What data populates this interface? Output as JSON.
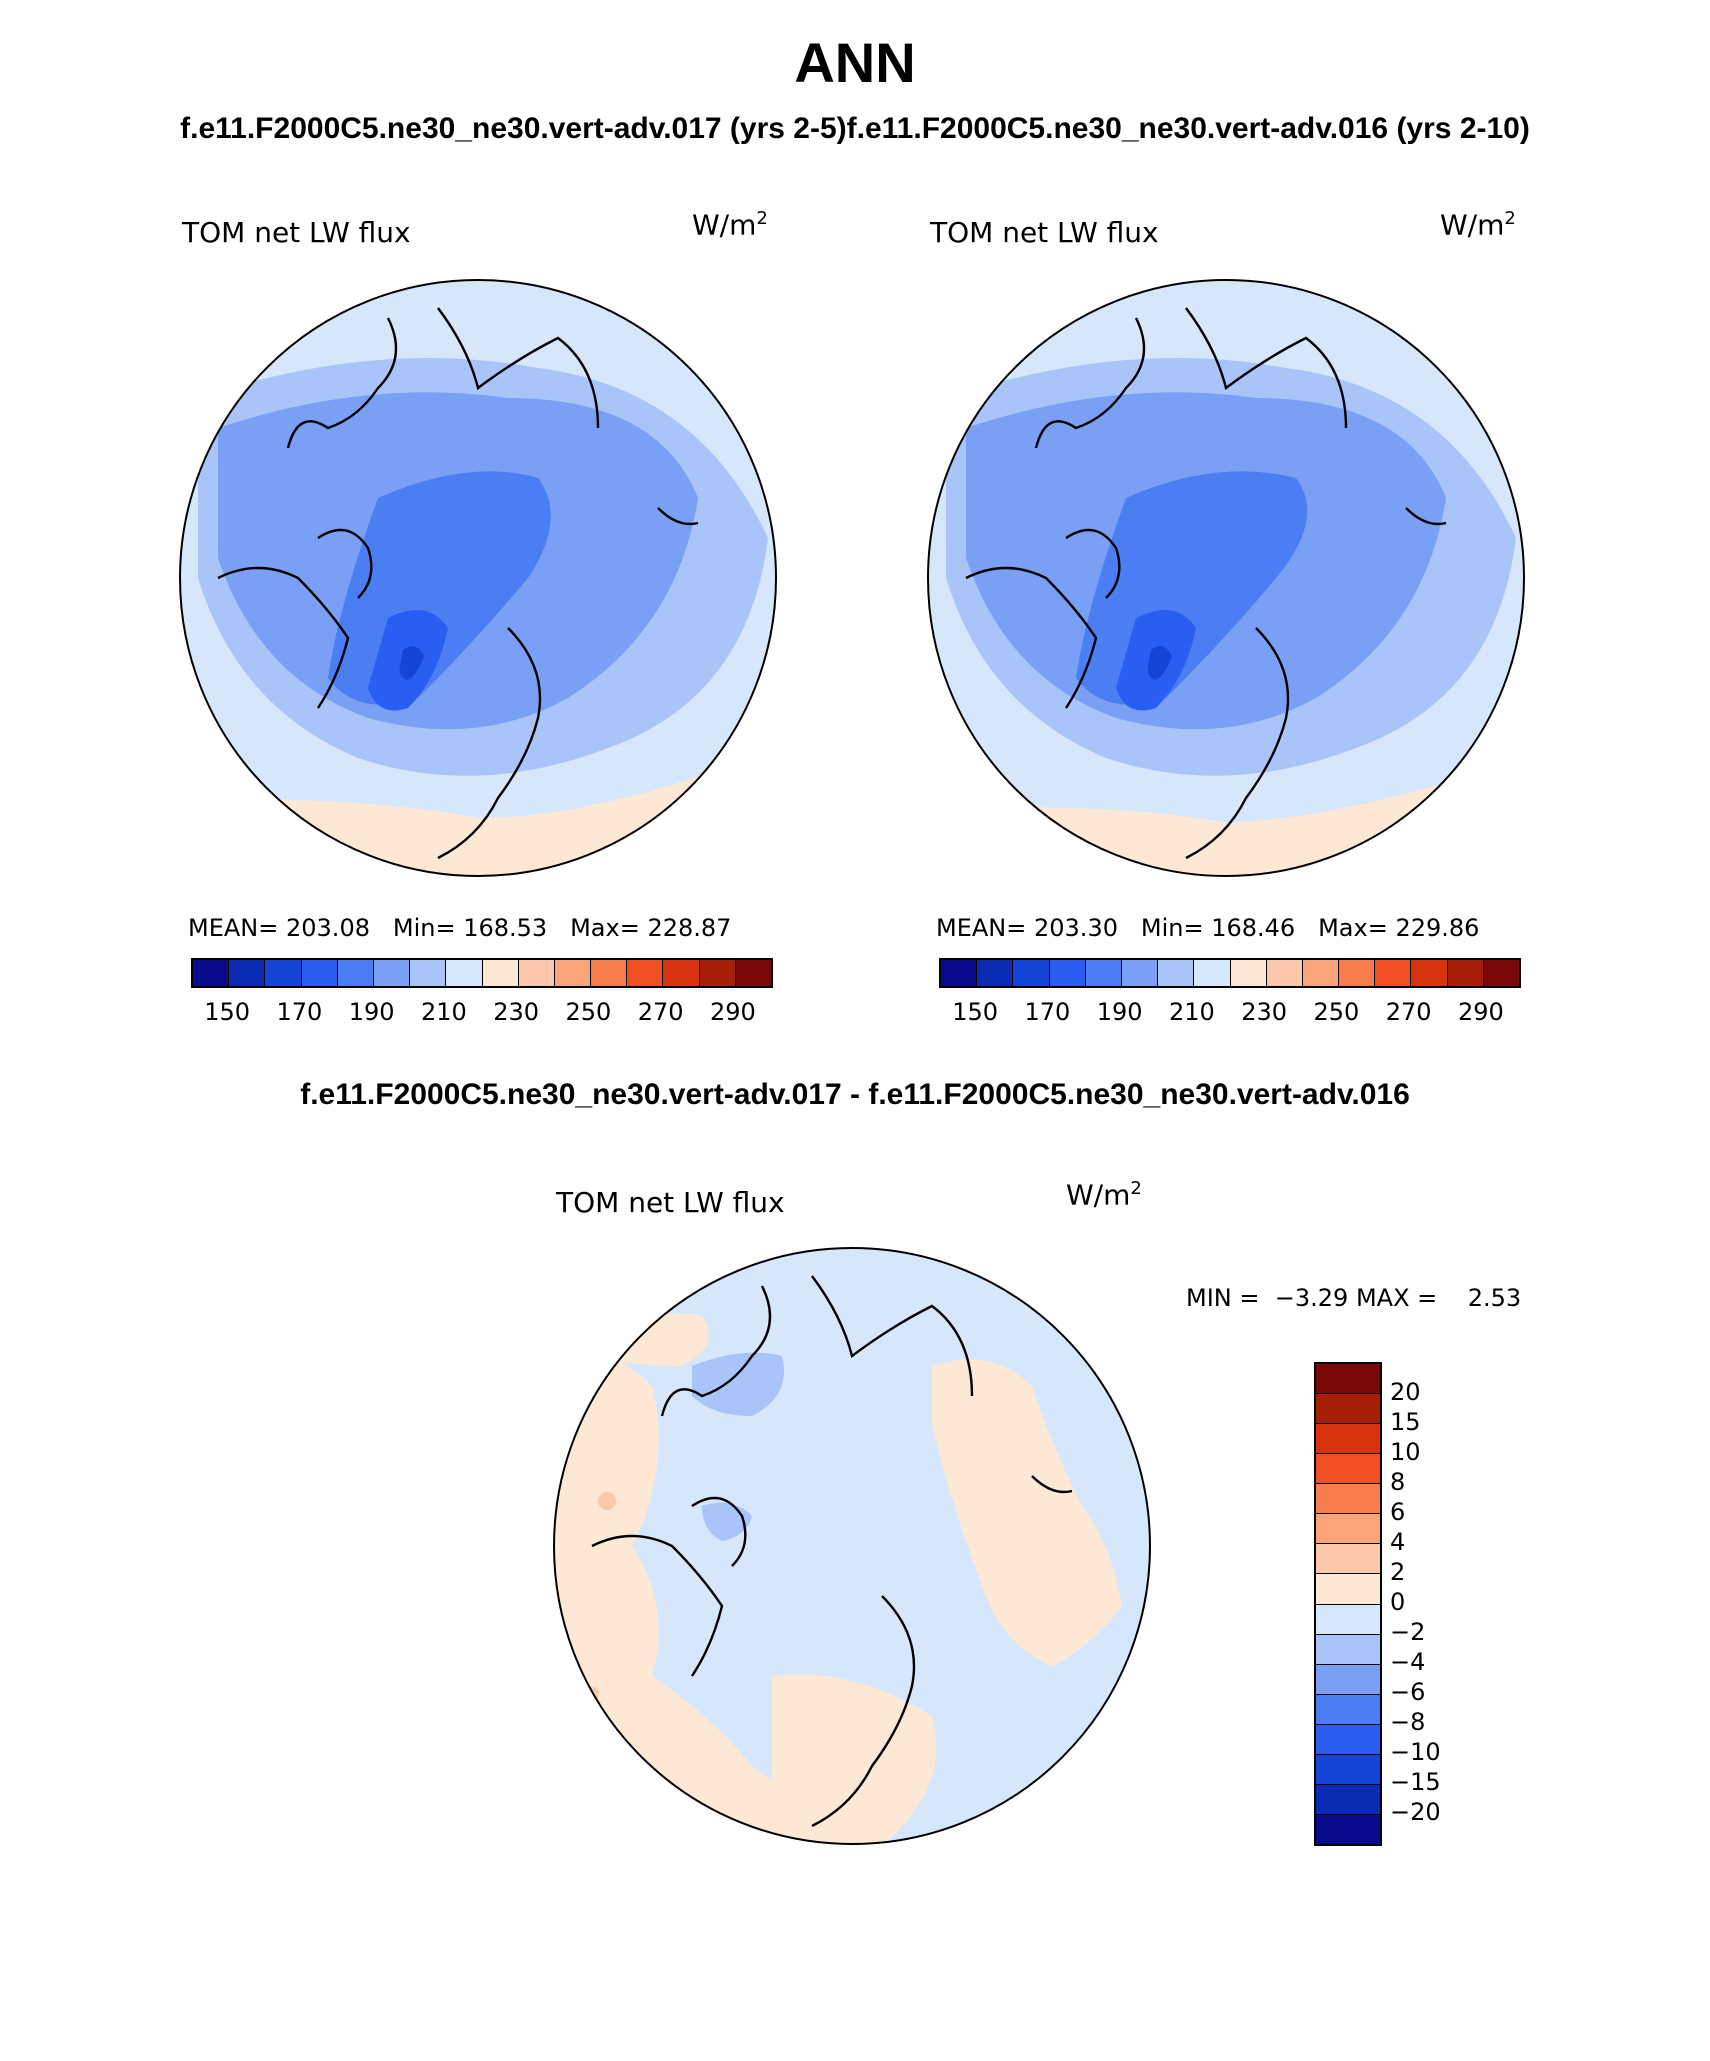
{
  "header": {
    "title": "ANN",
    "subtitle": "f.e11.F2000C5.ne30_ne30.vert-adv.017 (yrs 2-5)f.e11.F2000C5.ne30_ne30.vert-adv.016 (yrs 2-10)",
    "diff_title": "f.e11.F2000C5.ne30_ne30.vert-adv.017 - f.e11.F2000C5.ne30_ne30.vert-adv.016"
  },
  "chart_data": [
    {
      "type": "heatmap",
      "projection": "polar stereographic (north pole)",
      "title": "TOM net LW flux",
      "units": "W/m",
      "units_exp": "2",
      "stats": {
        "mean_label": "MEAN=",
        "mean": "203.08",
        "min_label": "Min=",
        "min": "168.53",
        "max_label": "Max=",
        "max": "228.87"
      },
      "levels": [
        150,
        160,
        170,
        180,
        190,
        200,
        210,
        220,
        230,
        240,
        250,
        260,
        270,
        280,
        290
      ],
      "colorbar_labels": [
        "150",
        "170",
        "190",
        "210",
        "230",
        "250",
        "270",
        "290"
      ],
      "colors": [
        "#0a0a8c",
        "#0c2bb5",
        "#1445d6",
        "#2a5ef0",
        "#4a7ef2",
        "#7aa0f5",
        "#a8c4f8",
        "#d6e6fb",
        "#fde8d6",
        "#fcc8a9",
        "#fba47a",
        "#f77b4b",
        "#f04f23",
        "#d8320f",
        "#a81d08",
        "#7a0808"
      ]
    },
    {
      "type": "heatmap",
      "projection": "polar stereographic (north pole)",
      "title": "TOM net LW flux",
      "units": "W/m",
      "units_exp": "2",
      "stats": {
        "mean_label": "MEAN=",
        "mean": "203.30",
        "min_label": "Min=",
        "min": "168.46",
        "max_label": "Max=",
        "max": "229.86"
      },
      "levels": [
        150,
        160,
        170,
        180,
        190,
        200,
        210,
        220,
        230,
        240,
        250,
        260,
        270,
        280,
        290
      ],
      "colorbar_labels": [
        "150",
        "170",
        "190",
        "210",
        "230",
        "250",
        "270",
        "290"
      ],
      "colors": [
        "#0a0a8c",
        "#0c2bb5",
        "#1445d6",
        "#2a5ef0",
        "#4a7ef2",
        "#7aa0f5",
        "#a8c4f8",
        "#d6e6fb",
        "#fde8d6",
        "#fcc8a9",
        "#fba47a",
        "#f77b4b",
        "#f04f23",
        "#d8320f",
        "#a81d08",
        "#7a0808"
      ]
    },
    {
      "type": "heatmap",
      "projection": "polar stereographic (north pole)",
      "title": "TOM net LW flux",
      "units": "W/m",
      "units_exp": "2",
      "stats": {
        "min_label": "MIN =",
        "min": "−3.29",
        "max_label": "MAX =",
        "max": "2.53"
      },
      "levels": [
        -20,
        -15,
        -10,
        -8,
        -6,
        -4,
        -2,
        0,
        2,
        4,
        6,
        8,
        10,
        15,
        20
      ],
      "colorbar_labels": [
        "20",
        "15",
        "10",
        "8",
        "6",
        "4",
        "2",
        "0",
        "−2",
        "−4",
        "−6",
        "−8",
        "−10",
        "−15",
        "−20"
      ],
      "colors": [
        "#7a0808",
        "#a81d08",
        "#d8320f",
        "#f04f23",
        "#f77b4b",
        "#fba47a",
        "#fcc8a9",
        "#fde8d6",
        "#d6e6fb",
        "#a8c4f8",
        "#7aa0f5",
        "#4a7ef2",
        "#2a5ef0",
        "#1445d6",
        "#0c2bb5",
        "#0a0a8c"
      ]
    }
  ]
}
